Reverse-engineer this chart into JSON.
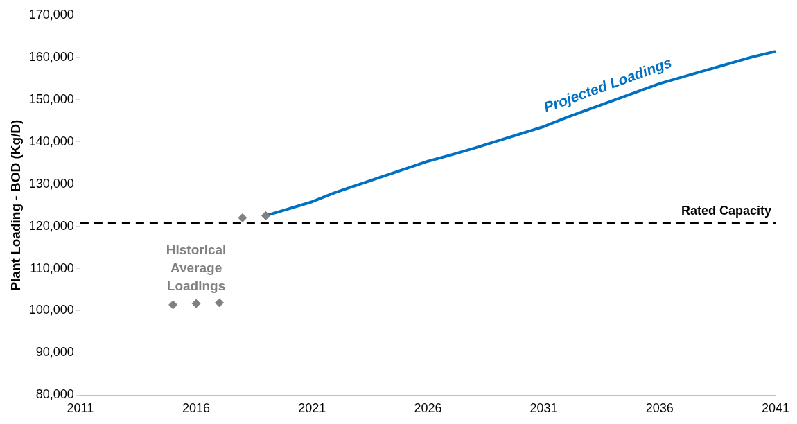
{
  "chart_data": {
    "type": "line",
    "ylabel": "Plant Loading - BOD (Kg/D)",
    "xlim": [
      2011,
      2041
    ],
    "xticks": [
      2011,
      2016,
      2021,
      2026,
      2031,
      2036,
      2041
    ],
    "ylim": [
      80000,
      170000
    ],
    "yticks": [
      {
        "value": 80000,
        "label": "80,000"
      },
      {
        "value": 90000,
        "label": "90,000"
      },
      {
        "value": 100000,
        "label": "100,000"
      },
      {
        "value": 110000,
        "label": "110,000"
      },
      {
        "value": 120000,
        "label": "120,000"
      },
      {
        "value": 130000,
        "label": "130,000"
      },
      {
        "value": 140000,
        "label": "140,000"
      },
      {
        "value": 150000,
        "label": "150,000"
      },
      {
        "value": 160000,
        "label": "160,000"
      },
      {
        "value": 170000,
        "label": "170,000"
      }
    ],
    "grid": false,
    "legend": false,
    "series": [
      {
        "name": "Historical Average Loadings",
        "type": "scatter",
        "marker": "diamond",
        "color": "#808080",
        "x": [
          2015,
          2016,
          2017,
          2018,
          2019
        ],
        "values": [
          101400,
          101700,
          101900,
          122000,
          122500
        ]
      },
      {
        "name": "Projected Loadings",
        "type": "line",
        "line_style": "solid",
        "color": "#0070c0",
        "x": [
          2019,
          2021,
          2022,
          2026,
          2027,
          2028,
          2031,
          2032,
          2036,
          2040,
          2041
        ],
        "values": [
          122500,
          125800,
          128000,
          135400,
          136900,
          138500,
          143600,
          145800,
          153800,
          160100,
          161400
        ]
      }
    ],
    "ref_lines": [
      {
        "axis": "y",
        "value": 120700,
        "label": "Rated Capacity",
        "color": "#000000",
        "line_style": "dashed"
      }
    ]
  }
}
